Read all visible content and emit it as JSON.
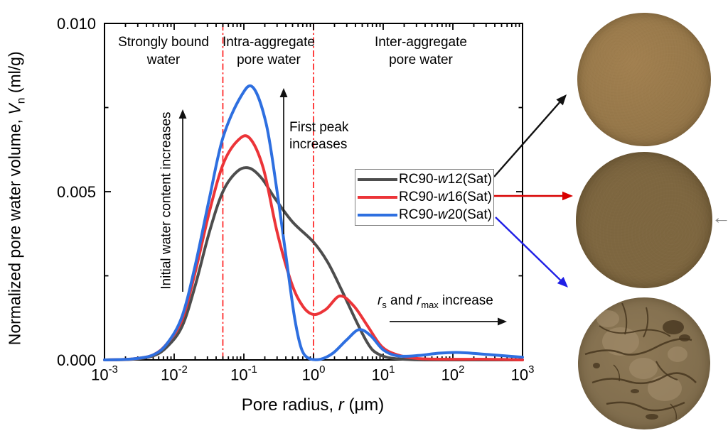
{
  "chart_data": {
    "type": "line",
    "title": "",
    "xlabel": "Pore radius, r (μm)",
    "ylabel": "Normalized pore water volume, Vn (ml/g)",
    "x_scale": "log",
    "xlim": [
      0.001,
      1000
    ],
    "ylim": [
      0,
      0.01
    ],
    "grid": false,
    "legend_position": "inside right-center",
    "boundary_lines_x_um": [
      0.05,
      1.0
    ],
    "boundary_line_color": "#ff1212",
    "y_major_ticks": [
      0,
      0.005,
      0.01
    ],
    "y_minor_ticks": [
      0.0025,
      0.0075
    ],
    "x_decade_ticks": [
      -3,
      -2,
      -1,
      0,
      1,
      2,
      3
    ],
    "series": [
      {
        "name": "RC90-w12(Sat)",
        "color": "#4d4d4d",
        "points": [
          [
            0.001,
            0
          ],
          [
            0.0025,
            2e-05
          ],
          [
            0.005,
            0.00012
          ],
          [
            0.008,
            0.0004
          ],
          [
            0.013,
            0.001
          ],
          [
            0.02,
            0.0022
          ],
          [
            0.032,
            0.0038
          ],
          [
            0.05,
            0.005
          ],
          [
            0.08,
            0.0056
          ],
          [
            0.12,
            0.0057
          ],
          [
            0.18,
            0.0054
          ],
          [
            0.28,
            0.0048
          ],
          [
            0.5,
            0.0041
          ],
          [
            1,
            0.0035
          ],
          [
            1.6,
            0.0029
          ],
          [
            2.5,
            0.0021
          ],
          [
            4,
            0.0012
          ],
          [
            5.6,
            0.0006
          ],
          [
            7,
            0.0003
          ],
          [
            9,
            0.00015
          ],
          [
            12.5,
            6e-05
          ],
          [
            20,
            2e-05
          ],
          [
            40,
            0
          ],
          [
            160,
            0
          ],
          [
            1000,
            0
          ]
        ]
      },
      {
        "name": "RC90-w16(Sat)",
        "color": "#ec3438",
        "points": [
          [
            0.001,
            0
          ],
          [
            0.0025,
            3e-05
          ],
          [
            0.005,
            0.00015
          ],
          [
            0.008,
            0.0005
          ],
          [
            0.013,
            0.0012
          ],
          [
            0.02,
            0.0026
          ],
          [
            0.032,
            0.0044
          ],
          [
            0.05,
            0.0058
          ],
          [
            0.08,
            0.0065
          ],
          [
            0.12,
            0.0066
          ],
          [
            0.19,
            0.0057
          ],
          [
            0.3,
            0.0038
          ],
          [
            0.48,
            0.0023
          ],
          [
            0.7,
            0.0016
          ],
          [
            1,
            0.00135
          ],
          [
            1.5,
            0.0015
          ],
          [
            2.4,
            0.0019
          ],
          [
            3.8,
            0.0016
          ],
          [
            6,
            0.001
          ],
          [
            9.5,
            0.0004
          ],
          [
            16,
            0.00015
          ],
          [
            32,
            4e-05
          ],
          [
            100,
            2e-05
          ],
          [
            320,
            2e-05
          ],
          [
            1000,
            0
          ]
        ]
      },
      {
        "name": "RC90-w20(Sat)",
        "color": "#2e6fe0",
        "points": [
          [
            0.001,
            0
          ],
          [
            0.0025,
            3e-05
          ],
          [
            0.005,
            0.00015
          ],
          [
            0.008,
            0.0005
          ],
          [
            0.013,
            0.0013
          ],
          [
            0.02,
            0.0028
          ],
          [
            0.032,
            0.0048
          ],
          [
            0.05,
            0.0066
          ],
          [
            0.089,
            0.0078
          ],
          [
            0.135,
            0.0081
          ],
          [
            0.21,
            0.007
          ],
          [
            0.3,
            0.005
          ],
          [
            0.42,
            0.0028
          ],
          [
            0.54,
            0.0012
          ],
          [
            0.68,
            0.0003
          ],
          [
            0.89,
            3e-05
          ],
          [
            1.26,
            2e-05
          ],
          [
            1.9,
            0.0002
          ],
          [
            3,
            0.0006
          ],
          [
            4.5,
            0.0009
          ],
          [
            6.6,
            0.00072
          ],
          [
            10,
            0.0003
          ],
          [
            16,
            0.00012
          ],
          [
            32,
            0.00013
          ],
          [
            63,
            0.0002
          ],
          [
            126,
            0.00022
          ],
          [
            320,
            0.00016
          ],
          [
            1000,
            8e-05
          ]
        ]
      }
    ]
  },
  "axes": {
    "y": {
      "prefix": "Normalized pore water volume, ",
      "var": "V",
      "sub": "n",
      "suffix": " (ml/g)",
      "ticks": [
        "0.000",
        "0.005",
        "0.010"
      ]
    },
    "x": {
      "prefix": "Pore radius, ",
      "var": "r",
      "suffix": " (μm)",
      "base": "10",
      "exponents": [
        "-3",
        "-2",
        "-1",
        "0",
        "1",
        "2",
        "3"
      ]
    }
  },
  "regions": {
    "items": [
      {
        "line1": "Strongly bound",
        "line2": "water"
      },
      {
        "line1": "Intra-aggregate",
        "line2": "pore water"
      },
      {
        "line1": "Inter-aggregate",
        "line2": "pore water"
      }
    ]
  },
  "annotations": {
    "first_peak": {
      "line1": "First peak",
      "line2": "increases"
    },
    "initial_water": {
      "text": "Initial water content increases"
    },
    "r_increase": {
      "r1": "r",
      "sub1": "s",
      "mid": " and ",
      "r2": "r",
      "sub2": "max",
      "tail": " increase"
    }
  },
  "legend": {
    "items": [
      {
        "prefix": "RC90-",
        "w": "w",
        "num": "12",
        "suffix": "(Sat)"
      },
      {
        "prefix": "RC90-",
        "w": "w",
        "num": "16",
        "suffix": "(Sat)"
      },
      {
        "prefix": "RC90-",
        "w": "w",
        "num": "20",
        "suffix": "(Sat)"
      }
    ]
  },
  "connector_arrows": {
    "black": "#111111",
    "red": "#d80000",
    "blue": "#1f1fe6"
  },
  "photos": [
    {
      "label": "smooth tan sample disc",
      "base": "#a28050",
      "mid": "#97784a",
      "edge": "#8b6e44"
    },
    {
      "label": "smooth dark brown sample disc",
      "base": "#7e6740",
      "mid": "#7a6340",
      "edge": "#6f5a38"
    },
    {
      "label": "rough cracked aggregated sample disc",
      "base": "#8d7856",
      "mid": "#877452",
      "edge": "#7a6849",
      "crack": "#46361f",
      "patch": "#a69070"
    }
  ],
  "misc": {
    "gray_left_arrow": "←"
  }
}
